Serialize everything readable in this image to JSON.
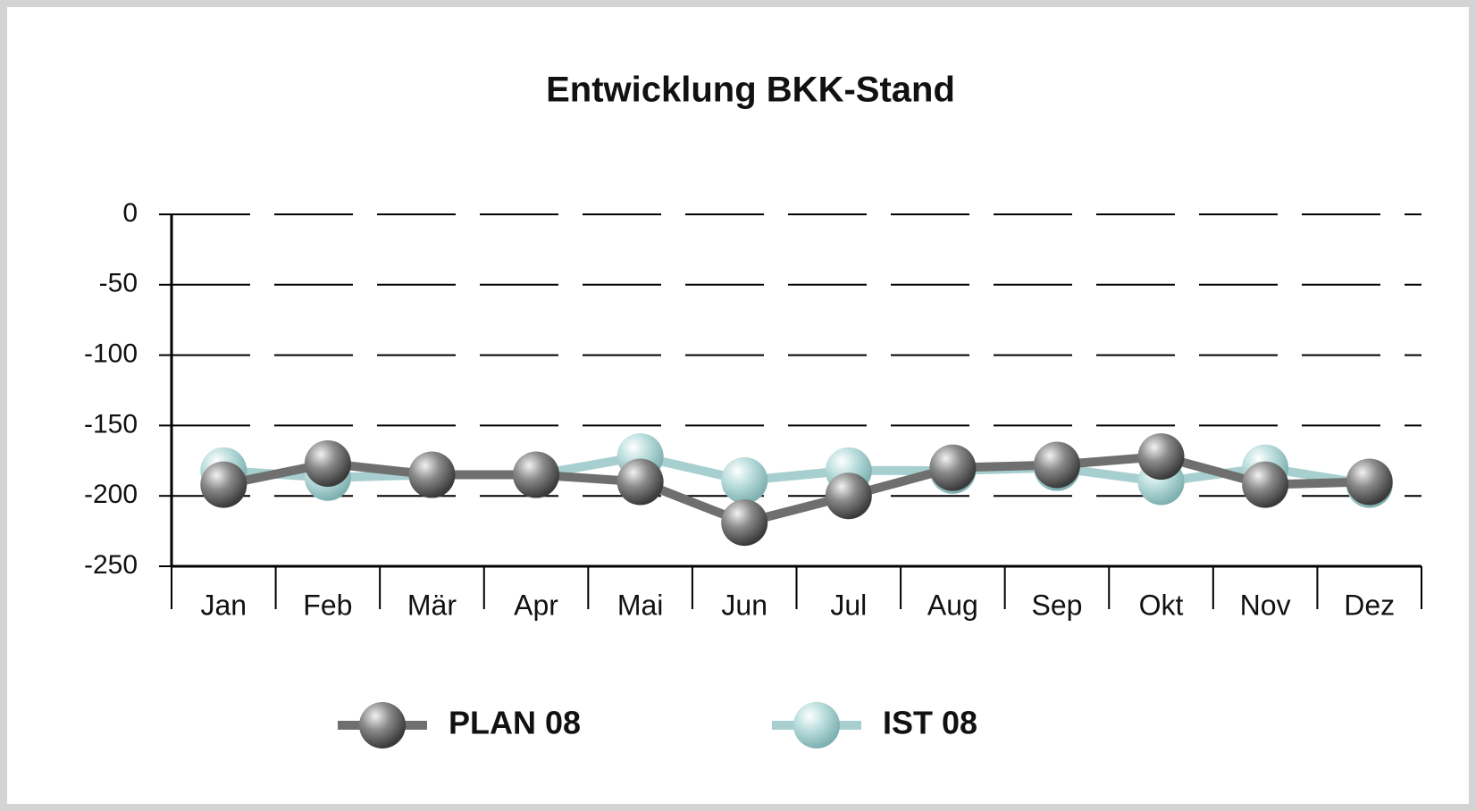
{
  "chart_data": {
    "type": "line",
    "title": "Entwicklung BKK-Stand",
    "categories": [
      "Jan",
      "Feb",
      "Mär",
      "Apr",
      "Mai",
      "Jun",
      "Jul",
      "Aug",
      "Sep",
      "Okt",
      "Nov",
      "Dez"
    ],
    "series": [
      {
        "name": "PLAN 08",
        "color": "#6f6f6f",
        "values": [
          -192,
          -177,
          -185,
          -185,
          -190,
          -219,
          -200,
          -180,
          -178,
          -172,
          -192,
          -190
        ]
      },
      {
        "name": "IST 08",
        "color": "#a8cfcf",
        "values": [
          -182,
          -187,
          -185,
          -185,
          -172,
          -189,
          -182,
          -182,
          -180,
          -190,
          -180,
          -192
        ]
      }
    ],
    "ylim": [
      -250,
      0
    ],
    "yticks": [
      -250,
      -200,
      -150,
      -100,
      -50,
      0
    ],
    "grid": true
  }
}
